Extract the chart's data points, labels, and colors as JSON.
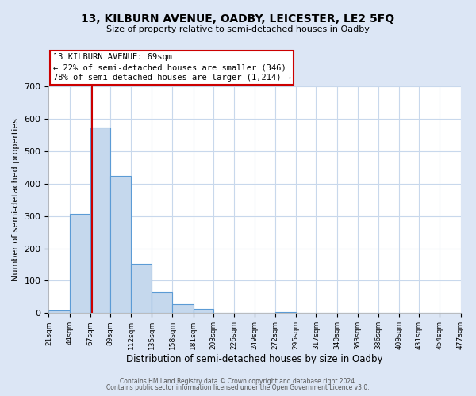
{
  "title": "13, KILBURN AVENUE, OADBY, LEICESTER, LE2 5FQ",
  "subtitle": "Size of property relative to semi-detached houses in Oadby",
  "xlabel": "Distribution of semi-detached houses by size in Oadby",
  "ylabel": "Number of semi-detached properties",
  "bin_edges": [
    21,
    44,
    67,
    89,
    112,
    135,
    158,
    181,
    203,
    226,
    249,
    272,
    295,
    317,
    340,
    363,
    386,
    409,
    431,
    454,
    477
  ],
  "bin_labels": [
    "21sqm",
    "44sqm",
    "67sqm",
    "89sqm",
    "112sqm",
    "135sqm",
    "158sqm",
    "181sqm",
    "203sqm",
    "226sqm",
    "249sqm",
    "272sqm",
    "295sqm",
    "317sqm",
    "340sqm",
    "363sqm",
    "386sqm",
    "409sqm",
    "431sqm",
    "454sqm",
    "477sqm"
  ],
  "counts": [
    8,
    307,
    574,
    425,
    152,
    65,
    28,
    13,
    0,
    0,
    0,
    4,
    0,
    0,
    0,
    0,
    0,
    0,
    0,
    0
  ],
  "bar_color": "#c5d8ed",
  "bar_edge_color": "#5b9bd5",
  "property_line_x": 69,
  "property_line_color": "#cc0000",
  "annotation_title": "13 KILBURN AVENUE: 69sqm",
  "annotation_line1": "← 22% of semi-detached houses are smaller (346)",
  "annotation_line2": "78% of semi-detached houses are larger (1,214) →",
  "annotation_box_color": "#cc0000",
  "ylim": [
    0,
    700
  ],
  "yticks": [
    0,
    100,
    200,
    300,
    400,
    500,
    600,
    700
  ],
  "footer_line1": "Contains HM Land Registry data © Crown copyright and database right 2024.",
  "footer_line2": "Contains public sector information licensed under the Open Government Licence v3.0.",
  "bg_color": "#dce6f5",
  "plot_bg_color": "#ffffff",
  "grid_color": "#c8d8ec"
}
